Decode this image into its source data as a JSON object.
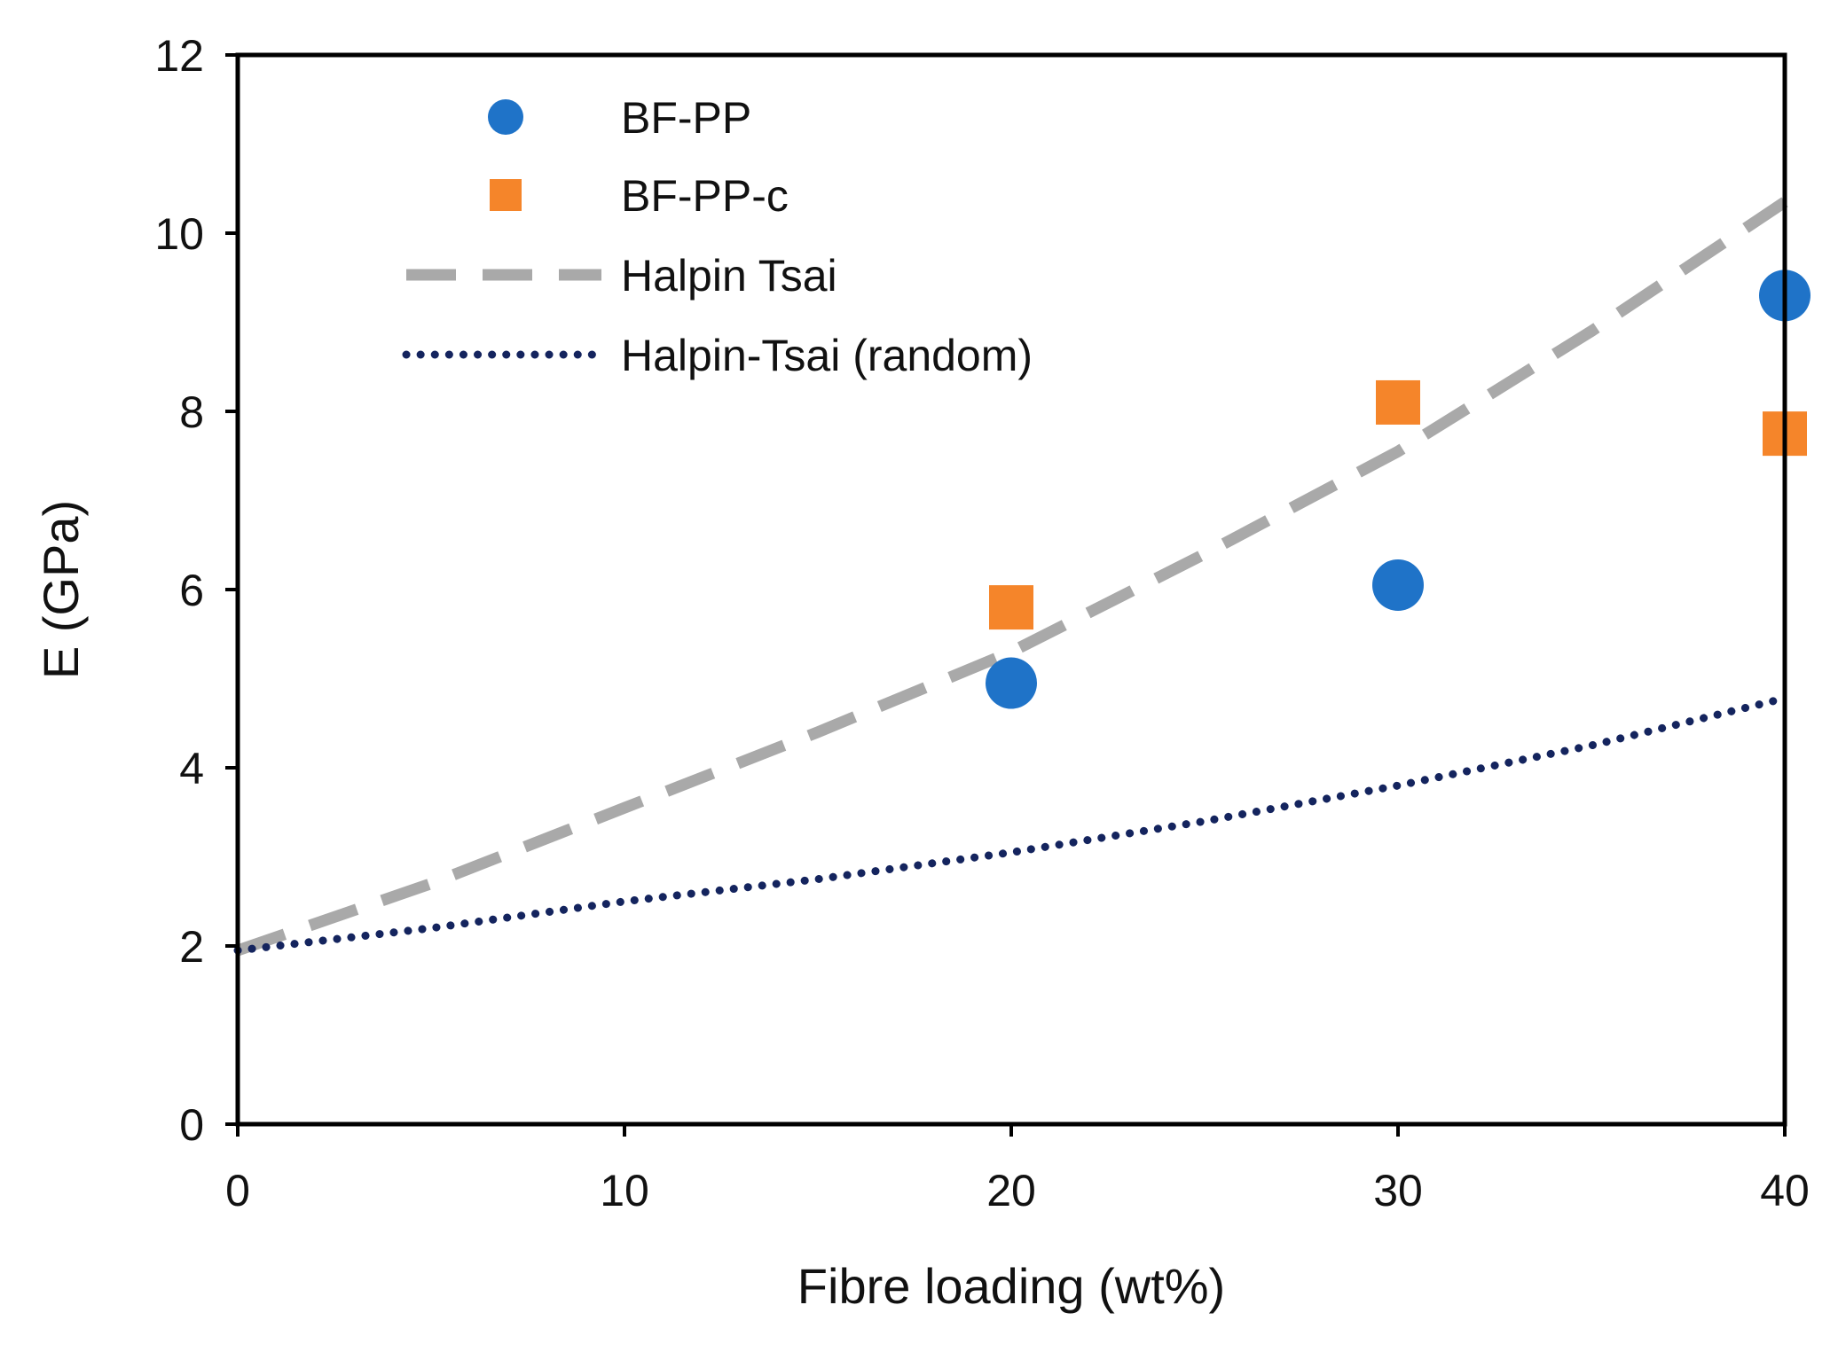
{
  "chart_data": {
    "type": "scatter",
    "title": "",
    "xlabel": "Fibre loading (wt%)",
    "ylabel": "E (GPa)",
    "xlim": [
      0,
      40
    ],
    "ylim": [
      0,
      12
    ],
    "xticks": [
      0,
      10,
      20,
      30,
      40
    ],
    "yticks": [
      0,
      2,
      4,
      6,
      8,
      10,
      12
    ],
    "grid": false,
    "legend_position": "top-left",
    "series": [
      {
        "name": "BF-PP",
        "kind": "marker",
        "marker": "circle",
        "color": "#1f73c8",
        "x": [
          20,
          30,
          40
        ],
        "y": [
          4.95,
          6.05,
          9.3
        ]
      },
      {
        "name": "BF-PP-c",
        "kind": "marker",
        "marker": "square",
        "color": "#f5852a",
        "x": [
          20,
          30,
          40
        ],
        "y": [
          5.8,
          8.1,
          7.75
        ]
      },
      {
        "name": "Halpin Tsai",
        "kind": "line",
        "line_style": "dashed",
        "color": "#a9a9a9",
        "x": [
          0,
          5,
          10,
          15,
          20,
          25,
          30,
          35,
          40
        ],
        "y": [
          1.95,
          2.7,
          3.55,
          4.4,
          5.3,
          6.4,
          7.55,
          8.9,
          10.35
        ]
      },
      {
        "name": "Halpin-Tsai (random)",
        "kind": "line",
        "line_style": "dotted",
        "color": "#14245e",
        "x": [
          0,
          5,
          10,
          15,
          20,
          25,
          30,
          35,
          40
        ],
        "y": [
          1.95,
          2.2,
          2.5,
          2.75,
          3.05,
          3.4,
          3.8,
          4.25,
          4.78
        ]
      }
    ]
  }
}
